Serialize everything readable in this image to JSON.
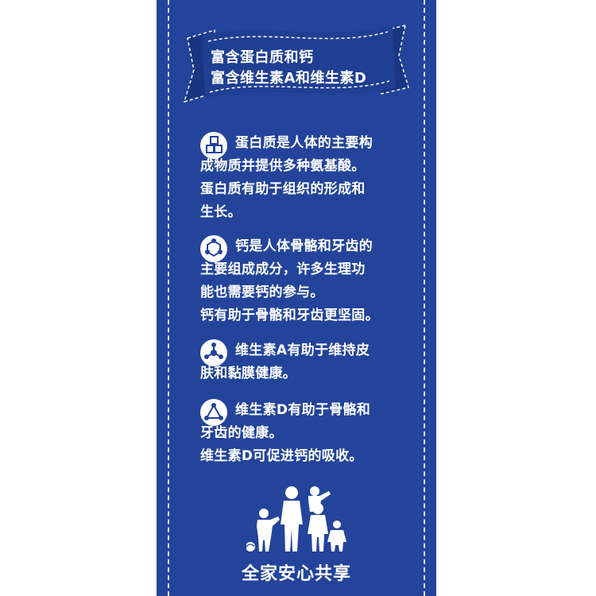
{
  "banner": {
    "line1": "富含蛋白质和钙",
    "line2": "富含维生素A和维生素D"
  },
  "features": [
    {
      "icon": "cubes-icon",
      "lines": [
        "蛋白质是人体的主要构",
        "成物质并提供多种氨基酸。",
        "蛋白质有助于组织的形成和",
        "生长。"
      ]
    },
    {
      "icon": "molecule-ring-icon",
      "lines": [
        "钙是人体骨骼和牙齿的",
        "主要组成成分，许多生理功",
        "能也需要钙的参与。",
        "钙有助于骨骼和牙齿更坚固。"
      ]
    },
    {
      "icon": "molecule-cluster-icon",
      "lines": [
        "维生素A有助于维持皮",
        "肤和黏膜健康。"
      ]
    },
    {
      "icon": "molecule-triangle-icon",
      "lines": [
        "维生素D有助于骨骼和",
        "牙齿的健康。",
        "维生素D可促进钙的吸收。"
      ]
    }
  ],
  "footer": {
    "slogan": "全家安心共享"
  },
  "colors": {
    "panel": "#23449a",
    "text": "#ffffff"
  }
}
